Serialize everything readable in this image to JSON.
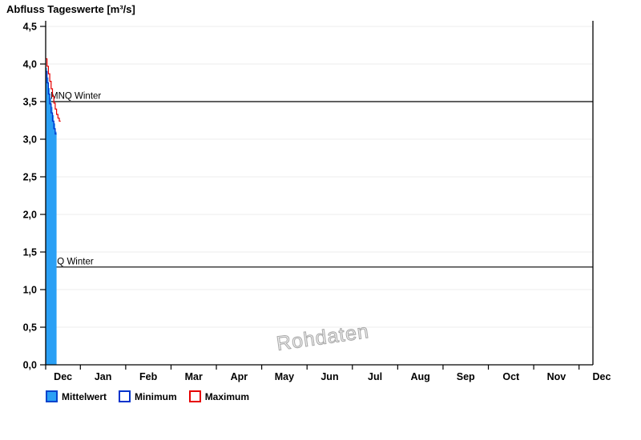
{
  "chart_data": {
    "type": "area",
    "title": "Abfluss Tageswerte [m³/s]",
    "xlabel": "",
    "ylabel": "m³/s",
    "ylim": [
      0,
      4.5
    ],
    "ytick_step": 0.5,
    "y_tick_labels": [
      "0,0",
      "0,5",
      "1,0",
      "1,5",
      "2,0",
      "2,5",
      "3,0",
      "3,5",
      "4,0",
      "4,5"
    ],
    "x_tick_labels": [
      "Dec",
      "Jan",
      "Feb",
      "Mar",
      "Apr",
      "May",
      "Jun",
      "Jul",
      "Aug",
      "Sep",
      "Oct",
      "Nov",
      "Dec"
    ],
    "grid": "horizontal",
    "legend_position": "bottom-left",
    "watermark": "Rohdaten",
    "background_color": "#ffffff",
    "grid_color": "#ededed",
    "axis_color": "#000000",
    "series": [
      {
        "name": "Mittelwert",
        "type": "area",
        "color": "#2AA0F5",
        "edge": "#0044CC",
        "values": [
          3.95,
          3.82,
          3.68,
          3.55,
          3.43,
          3.32,
          3.21,
          3.1
        ]
      },
      {
        "name": "Minimum",
        "type": "line",
        "color": "#0033CC",
        "values": [
          3.9,
          3.75,
          3.6,
          3.47,
          3.35,
          3.24,
          3.14,
          3.07
        ]
      },
      {
        "name": "Maximum",
        "type": "line",
        "color": "#E60000",
        "values": [
          4.07,
          3.97,
          3.87,
          3.77,
          3.67,
          3.57,
          3.48,
          3.4,
          3.33,
          3.28,
          3.24
        ]
      }
    ],
    "thresholds": [
      {
        "label": "MNQ Winter",
        "value": 3.5
      },
      {
        "label": "NQ Winter",
        "value": 1.3
      }
    ]
  }
}
